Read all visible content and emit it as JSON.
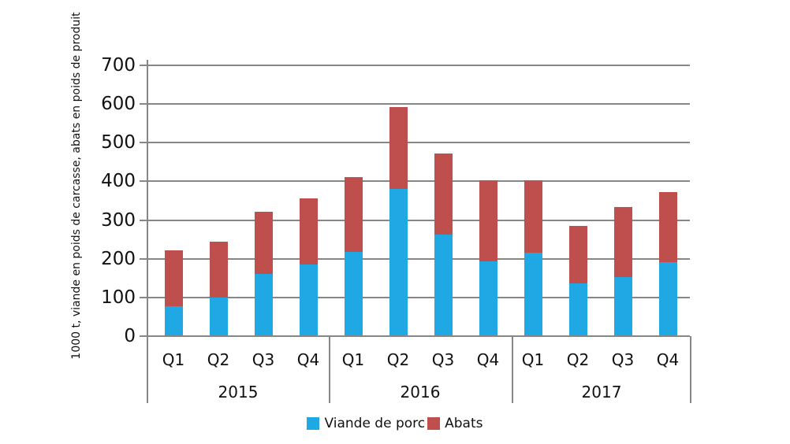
{
  "chart_data": {
    "type": "bar",
    "stacked": true,
    "title": "",
    "ylabel": "1000 t, viande en poids de carcasse, abats en poids de produit",
    "xlabel": "",
    "ylim": [
      0,
      700
    ],
    "yticks": [
      0,
      100,
      200,
      300,
      400,
      500,
      600,
      700
    ],
    "grid": true,
    "legend_position": "bottom-center",
    "groups": [
      {
        "label": "2015",
        "quarters": [
          "Q1",
          "Q2",
          "Q3",
          "Q4"
        ]
      },
      {
        "label": "2016",
        "quarters": [
          "Q1",
          "Q2",
          "Q3",
          "Q4"
        ]
      },
      {
        "label": "2017",
        "quarters": [
          "Q1",
          "Q2",
          "Q3",
          "Q4"
        ]
      }
    ],
    "series": [
      {
        "name": "Viande de porc",
        "color": "#1FA8E3",
        "values": [
          78,
          100,
          160,
          186,
          217,
          380,
          262,
          193,
          216,
          137,
          153,
          191
        ]
      },
      {
        "name": "Abats",
        "color": "#BE4F4C",
        "values": [
          144,
          145,
          162,
          170,
          194,
          212,
          211,
          209,
          186,
          147,
          181,
          182
        ]
      }
    ],
    "totals": [
      222,
      245,
      322,
      356,
      411,
      592,
      473,
      402,
      402,
      284,
      334,
      373
    ]
  },
  "style": {
    "grid_color": "#868686",
    "axis_color": "#868686",
    "text_color": "#111111",
    "background": "#ffffff"
  }
}
